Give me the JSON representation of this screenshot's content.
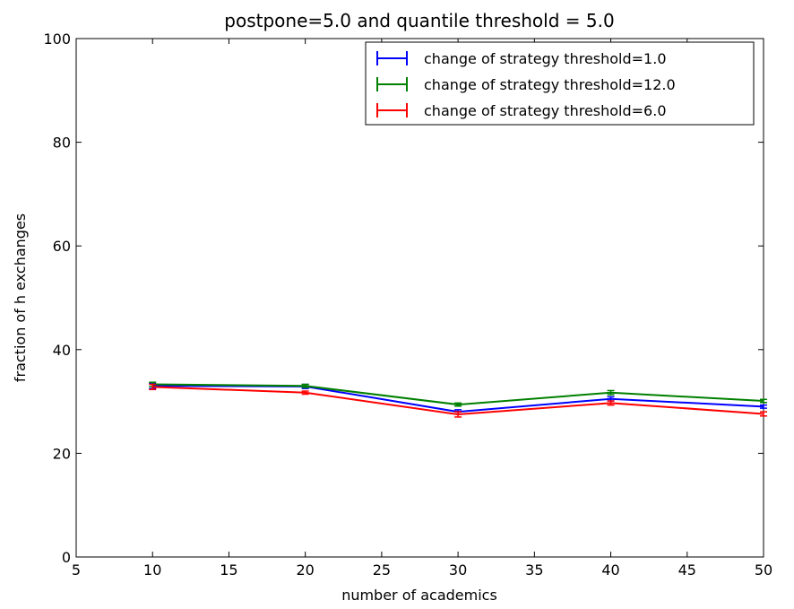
{
  "chart_data": {
    "type": "line",
    "title": "postpone=5.0 and quantile threshold = 5.0",
    "xlabel": "number of academics",
    "ylabel": "fraction of h exchanges",
    "xlim": [
      5,
      50
    ],
    "ylim": [
      0,
      100
    ],
    "xticks": [
      5,
      10,
      15,
      20,
      25,
      30,
      35,
      40,
      45,
      50
    ],
    "yticks": [
      0,
      20,
      40,
      60,
      80,
      100
    ],
    "grid": false,
    "legend_position": "top-right",
    "x": [
      10,
      20,
      30,
      40,
      50
    ],
    "series": [
      {
        "name": "change of strategy threshold=1.0",
        "color": "#0000ff",
        "values": [
          33.0,
          32.9,
          28.0,
          30.5,
          29.0
        ],
        "errors": [
          0.5,
          0.4,
          0.4,
          0.4,
          0.3
        ]
      },
      {
        "name": "change of strategy threshold=12.0",
        "color": "#008000",
        "values": [
          33.3,
          33.0,
          29.4,
          31.7,
          30.1
        ],
        "errors": [
          0.4,
          0.3,
          0.3,
          0.4,
          0.3
        ]
      },
      {
        "name": "change of strategy threshold=6.0",
        "color": "#ff0000",
        "values": [
          32.8,
          31.7,
          27.5,
          29.7,
          27.6
        ],
        "errors": [
          0.5,
          0.3,
          0.5,
          0.4,
          0.4
        ]
      }
    ]
  }
}
